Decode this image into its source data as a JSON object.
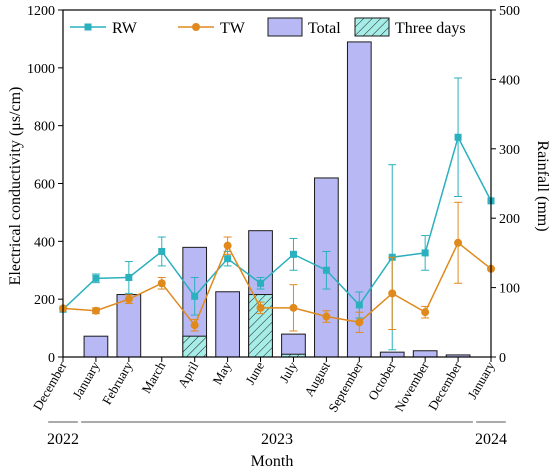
{
  "chart_data": {
    "type": "bar+line",
    "title": "",
    "xlabel": "Month",
    "ylabel_left": "Electrical conductivity (μs/cm)",
    "ylabel_right": "Rainfall (mm)",
    "categories": [
      "December",
      "January",
      "February",
      "March",
      "April",
      "May",
      "June",
      "July",
      "August",
      "September",
      "October",
      "November",
      "December",
      "January"
    ],
    "year_groups": [
      {
        "label": "2022",
        "start": 0,
        "end": 0
      },
      {
        "label": "2023",
        "start": 1,
        "end": 12
      },
      {
        "label": "2024",
        "start": 13,
        "end": 13
      }
    ],
    "ylim_left": [
      0,
      1200
    ],
    "yticks_left": [
      0,
      200,
      400,
      600,
      800,
      1000,
      1200
    ],
    "ylim_right": [
      0,
      500
    ],
    "yticks_right": [
      0,
      100,
      200,
      300,
      400,
      500
    ],
    "legend_position": "top",
    "series": [
      {
        "name": "RW",
        "kind": "line",
        "axis": "left",
        "marker": "square",
        "color": "#2bb0bd",
        "values": [
          165,
          272,
          275,
          365,
          210,
          340,
          255,
          355,
          300,
          180,
          345,
          360,
          760,
          540
        ],
        "errors": [
          0,
          15,
          55,
          50,
          65,
          25,
          20,
          55,
          65,
          45,
          320,
          60,
          205,
          0
        ]
      },
      {
        "name": "TW",
        "kind": "line",
        "axis": "left",
        "marker": "circle",
        "color": "#e08a1e",
        "values": [
          168,
          160,
          200,
          255,
          110,
          385,
          170,
          170,
          140,
          120,
          220,
          155,
          395,
          305
        ],
        "errors": [
          0,
          10,
          15,
          20,
          20,
          30,
          20,
          80,
          20,
          35,
          125,
          20,
          140,
          0
        ]
      },
      {
        "name": "Total",
        "kind": "bar",
        "axis": "right",
        "color": "#b8b9f4",
        "values": [
          0,
          30,
          90,
          0,
          158,
          94,
          182,
          33,
          258,
          454,
          7,
          9,
          3,
          0
        ]
      },
      {
        "name": "Three days",
        "kind": "bar",
        "axis": "right",
        "pattern": "hatch",
        "color": "#a6ede8",
        "values": [
          0,
          0,
          0,
          0,
          30,
          0,
          90,
          4,
          0,
          0,
          0,
          0,
          0,
          0
        ]
      }
    ]
  }
}
